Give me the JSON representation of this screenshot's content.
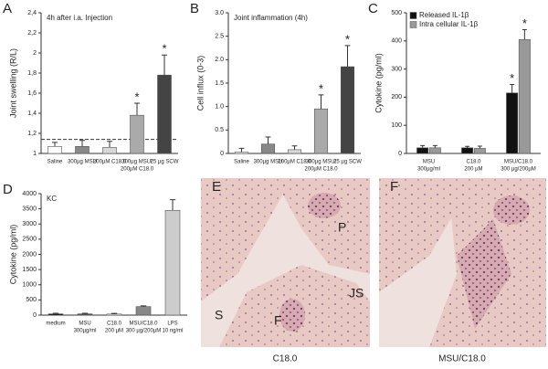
{
  "chart_data": [
    {
      "type": "bar",
      "panel": "A",
      "ylabel": "Joint swelling (R/L)",
      "annotation": "4h after i.a. Injection",
      "categories": [
        [
          "Saline"
        ],
        [
          "300µg MSU"
        ],
        [
          "200µM C18.0"
        ],
        [
          "300µg MSU/",
          "200µM C18.0"
        ],
        [
          "25 µg SCW"
        ]
      ],
      "series": [
        {
          "values": [
            1.07,
            1.07,
            1.06,
            1.38,
            1.78
          ],
          "errors": [
            0.04,
            0.06,
            0.06,
            0.12,
            0.2
          ],
          "colors": [
            "#ffffff",
            "#888888",
            "#d8d8d8",
            "#aaaaaa",
            "#444444"
          ]
        }
      ],
      "reference_line": 1.14,
      "markers": [
        {
          "text": "*",
          "index": 3,
          "series": 0
        },
        {
          "text": "*",
          "index": 4,
          "series": 0
        }
      ],
      "ylim": [
        1,
        2.4
      ],
      "yticks": [
        1,
        {
          "value": 1.2,
          "label": "1,2"
        },
        {
          "value": 1.4,
          "label": "1,4"
        },
        {
          "value": 1.6,
          "label": "1,6"
        },
        {
          "value": 1.8,
          "label": "1,8"
        },
        2,
        {
          "value": 2.2,
          "label": "2,2"
        },
        {
          "value": 2.4,
          "label": "2,4"
        }
      ]
    },
    {
      "type": "bar",
      "panel": "B",
      "ylabel": "Cell influx (0-3)",
      "annotation": "Joint inflammation (4h)",
      "categories": [
        [
          "Saline"
        ],
        [
          "300µg MSU"
        ],
        [
          "200µM C18.0"
        ],
        [
          "300µg MSU/",
          "200µM C18.0"
        ],
        [
          "25 µg SCW"
        ]
      ],
      "series": [
        {
          "values": [
            0.03,
            0.2,
            0.08,
            0.95,
            1.85
          ],
          "errors": [
            0.08,
            0.15,
            0.08,
            0.3,
            0.45
          ],
          "colors": [
            "#ffffff",
            "#888888",
            "#d8d8d8",
            "#aaaaaa",
            "#444444"
          ]
        }
      ],
      "markers": [
        {
          "text": "*",
          "index": 3,
          "series": 0
        },
        {
          "text": "*",
          "index": 4,
          "series": 0
        }
      ],
      "ylim": [
        0,
        3
      ],
      "yticks": [
        0,
        0.5,
        {
          "value": 1,
          "label": "1.0"
        },
        1.5,
        {
          "value": 2,
          "label": "2.0"
        },
        2.5,
        {
          "value": 3,
          "label": "3.0"
        }
      ]
    },
    {
      "type": "bar",
      "panel": "C",
      "ylabel": "Cytokine (pg/ml)",
      "categories": [
        [
          "MSU",
          "300µg/ml"
        ],
        [
          "C18.0",
          "200 µM"
        ],
        [
          "MSU/C18.0",
          "300 µg/200µM"
        ]
      ],
      "series": [
        {
          "name": "Released IL-1β",
          "color": "#111111",
          "values": [
            20,
            20,
            215
          ],
          "errors": [
            8,
            5,
            30
          ]
        },
        {
          "name": "Intra cellular IL-1β",
          "color": "#999999",
          "values": [
            20,
            18,
            405
          ],
          "errors": [
            8,
            8,
            35
          ]
        }
      ],
      "markers": [
        {
          "text": "*",
          "index": 2,
          "series": 0
        },
        {
          "text": "*",
          "index": 2,
          "series": 1
        }
      ],
      "ylim": [
        0,
        500
      ],
      "yticks": [
        0,
        100,
        200,
        300,
        400,
        500
      ]
    },
    {
      "type": "bar",
      "panel": "D",
      "ylabel": "Cytokine (pg/ml)",
      "annotation": "KC",
      "categories": [
        [
          "medium"
        ],
        [
          "MSU",
          "300µg/ml"
        ],
        [
          "C18.0",
          "200 µM"
        ],
        [
          "MSU/C18.0",
          "300 µg/200µM"
        ],
        [
          "LPS",
          "10 ng/ml"
        ]
      ],
      "series": [
        {
          "values": [
            40,
            40,
            35,
            280,
            3450
          ],
          "errors": [
            20,
            20,
            20,
            25,
            350
          ],
          "colors": [
            "#111111",
            "#555555",
            "#ffffff",
            "#888888",
            "#cccccc"
          ]
        }
      ],
      "ylim": [
        0,
        4000
      ],
      "yticks": [
        0,
        500,
        1000,
        1500,
        2000,
        2500,
        3000,
        3500,
        4000
      ]
    }
  ],
  "images": [
    {
      "panel": "E",
      "caption": "C18.0",
      "labels": [
        "P",
        "JS",
        "S",
        "F"
      ]
    },
    {
      "panel": "F",
      "caption": "MSU/C18.0"
    }
  ]
}
